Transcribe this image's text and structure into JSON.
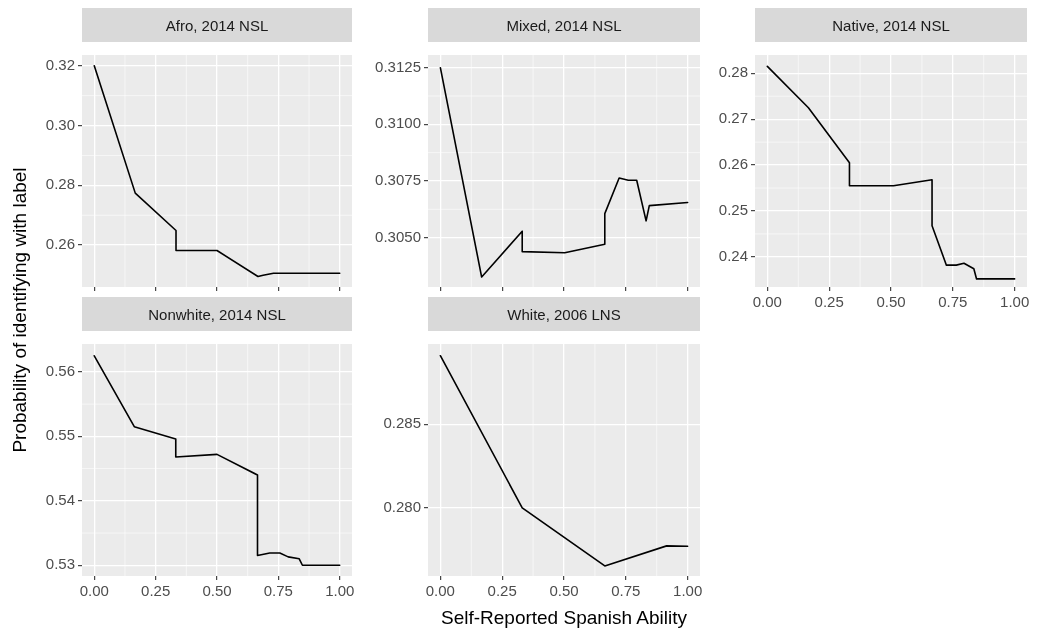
{
  "chart_data": [
    {
      "type": "line",
      "title": "Afro, 2014 NSL",
      "color": "#000000",
      "grid": true,
      "marker": "none",
      "line_style": "solid",
      "tick_labels": "y",
      "x": [
        0,
        0.167,
        0.333,
        0.333,
        0.5,
        0.667,
        0.688,
        0.73,
        1
      ],
      "values": [
        0.32,
        0.2774,
        0.2649,
        0.2582,
        0.2582,
        0.2495,
        0.2499,
        0.2506,
        0.2506
      ],
      "xlim": [
        -0.05,
        1.05
      ],
      "xticks": [
        0,
        0.25,
        0.5,
        0.75,
        1
      ],
      "ylim": [
        0.246,
        0.3236
      ],
      "yticks": [
        {
          "value": 0.26,
          "label": "0.26"
        },
        {
          "value": 0.28,
          "label": "0.28"
        },
        {
          "value": 0.3,
          "label": "0.30"
        },
        {
          "value": 0.32,
          "label": "0.32"
        }
      ]
    },
    {
      "type": "line",
      "title": "Mixed, 2014 NSL",
      "color": "#000000",
      "grid": true,
      "marker": "none",
      "line_style": "solid",
      "tick_labels": "y",
      "x": [
        0,
        0.167,
        0.331,
        0.331,
        0.503,
        0.665,
        0.665,
        0.723,
        0.76,
        0.794,
        0.832,
        0.845,
        1
      ],
      "values": [
        0.3125,
        0.30326,
        0.30528,
        0.30438,
        0.30433,
        0.30471,
        0.30606,
        0.30763,
        0.30753,
        0.30753,
        0.30574,
        0.30641,
        0.30655
      ],
      "xlim": [
        -0.05,
        1.05
      ],
      "xticks": [
        0,
        0.25,
        0.5,
        0.75,
        1
      ],
      "ylim": [
        0.30282,
        0.31306
      ],
      "yticks": [
        {
          "value": 0.305,
          "label": "0.3050"
        },
        {
          "value": 0.3075,
          "label": "0.3075"
        },
        {
          "value": 0.31,
          "label": "0.3100"
        },
        {
          "value": 0.3125,
          "label": "0.3125"
        }
      ]
    },
    {
      "type": "line",
      "title": "Native, 2014 NSL",
      "color": "#000000",
      "grid": true,
      "marker": "none",
      "line_style": "solid",
      "x": [
        0,
        0.166,
        0.332,
        0.332,
        0.51,
        0.666,
        0.666,
        0.724,
        0.764,
        0.795,
        0.835,
        0.846,
        1
      ],
      "values": [
        0.2815,
        0.2725,
        0.2605,
        0.2555,
        0.2555,
        0.2568,
        0.2468,
        0.2382,
        0.2382,
        0.2386,
        0.2374,
        0.2352,
        0.2352
      ],
      "xlim": [
        -0.05,
        1.05
      ],
      "xticks": [
        {
          "value": 0,
          "label": "0.00"
        },
        {
          "value": 0.25,
          "label": "0.25"
        },
        {
          "value": 0.5,
          "label": "0.50"
        },
        {
          "value": 0.75,
          "label": "0.75"
        },
        {
          "value": 1,
          "label": "1.00"
        }
      ],
      "ylim": [
        0.23344,
        0.28398
      ],
      "yticks": [
        0.24,
        0.25,
        0.26,
        0.27,
        0.28
      ]
    },
    {
      "type": "line",
      "title": "Nonwhite, 2014 NSL",
      "color": "#000000",
      "grid": true,
      "marker": "none",
      "line_style": "solid",
      "ylabel": "Probability of identifying with label",
      "x": [
        0,
        0.163,
        0.332,
        0.332,
        0.5,
        0.665,
        0.665,
        0.715,
        0.756,
        0.79,
        0.835,
        0.848,
        1
      ],
      "values": [
        0.5625,
        0.5515,
        0.5496,
        0.5468,
        0.5472,
        0.544,
        0.5315,
        0.5319,
        0.5319,
        0.5313,
        0.531,
        0.53,
        0.53
      ],
      "xlim": [
        -0.05,
        1.05
      ],
      "xticks": [
        {
          "value": 0,
          "label": "0.00"
        },
        {
          "value": 0.25,
          "label": "0.25"
        },
        {
          "value": 0.5,
          "label": "0.50"
        },
        {
          "value": 0.75,
          "label": "0.75"
        },
        {
          "value": 1,
          "label": "1.00"
        }
      ],
      "ylim": [
        0.52833,
        0.56433
      ],
      "yticks": [
        0.53,
        0.54,
        0.55,
        0.56
      ]
    },
    {
      "type": "line",
      "title": "White, 2006 LNS",
      "color": "#000000",
      "grid": true,
      "marker": "none",
      "line_style": "solid",
      "xlabel": "Self-Reported Spanish Ability",
      "x": [
        0,
        0.331,
        0.665,
        0.915,
        1
      ],
      "values": [
        0.28909,
        0.28,
        0.27653,
        0.27773,
        0.27771
      ],
      "xlim": [
        -0.05,
        1.05
      ],
      "xticks": [
        {
          "value": 0,
          "label": "0.00"
        },
        {
          "value": 0.25,
          "label": "0.25"
        },
        {
          "value": 0.5,
          "label": "0.50"
        },
        {
          "value": 0.75,
          "label": "0.75"
        },
        {
          "value": 1,
          "label": "1.00"
        }
      ],
      "ylim": [
        0.27593,
        0.28979
      ],
      "yticks": [
        {
          "value": 0.28,
          "label": "0.280"
        },
        0.285
      ]
    }
  ]
}
